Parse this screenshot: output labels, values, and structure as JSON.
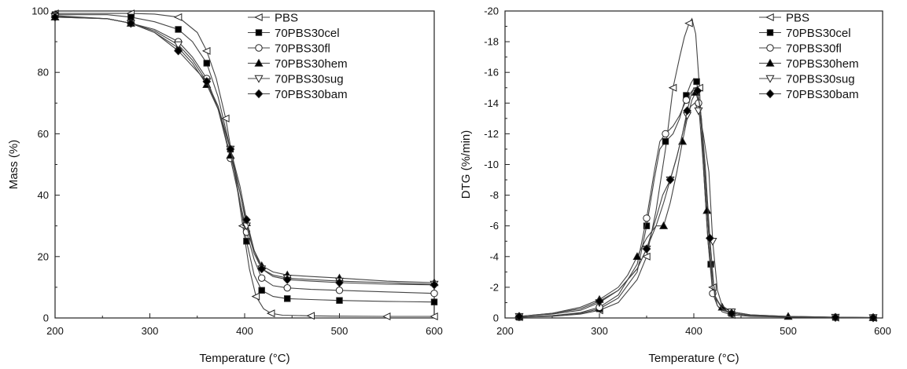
{
  "chart_data": [
    {
      "type": "line",
      "xlabel": "Temperature (°C)",
      "ylabel": "Mass (%)",
      "xlim": [
        200,
        600
      ],
      "ylim": [
        0,
        100
      ],
      "xticks": [
        "200",
        "300",
        "400",
        "500",
        "600"
      ],
      "yticks": [
        "0",
        "20",
        "40",
        "60",
        "80",
        "100"
      ],
      "grid": false,
      "legend_position": "top-right",
      "series": [
        {
          "name": "PBS",
          "marker": "triangle-left-open",
          "x": [
            200,
            255,
            280,
            305,
            330,
            350,
            360,
            370,
            380,
            390,
            398,
            405,
            412,
            420,
            428,
            440,
            470,
            500,
            550,
            600
          ],
          "y": [
            99.2,
            99.2,
            99.2,
            99,
            98,
            93,
            87,
            78,
            65,
            47,
            30,
            16,
            7,
            3,
            1.5,
            0.9,
            0.7,
            0.6,
            0.5,
            0.5
          ]
        },
        {
          "name": "70PBS30cel",
          "marker": "square-filled",
          "x": [
            200,
            255,
            280,
            305,
            330,
            345,
            360,
            372,
            385,
            395,
            402,
            410,
            418,
            430,
            445,
            470,
            500,
            550,
            600
          ],
          "y": [
            98.8,
            98.8,
            98,
            96.5,
            94,
            90,
            83,
            72,
            55,
            38,
            25,
            14,
            9,
            7,
            6.3,
            6,
            5.7,
            5.4,
            5.2
          ]
        },
        {
          "name": "70PBS30fl",
          "marker": "circle-open",
          "x": [
            200,
            255,
            280,
            305,
            330,
            345,
            360,
            372,
            385,
            395,
            402,
            410,
            418,
            430,
            445,
            470,
            500,
            550,
            600
          ],
          "y": [
            98.5,
            97.5,
            96,
            94,
            90,
            85,
            78,
            68,
            52,
            38,
            28,
            19,
            13,
            10.5,
            9.8,
            9.3,
            9,
            8.5,
            8
          ]
        },
        {
          "name": "70PBS30hem",
          "marker": "triangle-up-filled",
          "x": [
            200,
            255,
            280,
            305,
            330,
            345,
            360,
            372,
            385,
            395,
            402,
            410,
            418,
            430,
            445,
            470,
            500,
            550,
            600
          ],
          "y": [
            98,
            97.5,
            96,
            93,
            88,
            83,
            76,
            68,
            53,
            41,
            31,
            22,
            17,
            15,
            14,
            13.5,
            13,
            12,
            11.5
          ]
        },
        {
          "name": "70PBS30sug",
          "marker": "triangle-down-open",
          "x": [
            200,
            255,
            280,
            305,
            330,
            345,
            360,
            372,
            385,
            395,
            402,
            410,
            418,
            430,
            445,
            470,
            500,
            550,
            600
          ],
          "y": [
            98.2,
            97.5,
            96,
            93.5,
            89,
            84,
            77,
            69,
            55,
            41,
            30,
            21,
            16,
            14,
            13,
            12.5,
            12,
            11.5,
            11
          ]
        },
        {
          "name": "70PBS30bam",
          "marker": "diamond-filled",
          "x": [
            200,
            255,
            280,
            305,
            330,
            345,
            360,
            372,
            385,
            395,
            402,
            410,
            418,
            430,
            445,
            470,
            500,
            550,
            600
          ],
          "y": [
            98,
            97.5,
            96,
            93,
            87,
            82,
            77,
            68,
            55,
            43,
            32,
            22,
            16,
            13.5,
            12.5,
            12,
            11.5,
            11,
            10.8
          ]
        }
      ]
    },
    {
      "type": "line",
      "xlabel": "Temperature (°C)",
      "ylabel": "DTG (%/min)",
      "xlim": [
        200,
        600
      ],
      "ylim": [
        0,
        -20
      ],
      "xticks": [
        "200",
        "300",
        "400",
        "500",
        "600"
      ],
      "yticks": [
        "0",
        "-2",
        "-4",
        "-6",
        "-8",
        "-10",
        "-12",
        "-14",
        "-16",
        "-18",
        "-20"
      ],
      "grid": false,
      "legend_position": "top-right",
      "series": [
        {
          "name": "PBS",
          "marker": "triangle-left-open",
          "x": [
            215,
            250,
            280,
            300,
            320,
            340,
            350,
            360,
            370,
            378,
            385,
            390,
            395,
            398,
            402,
            406,
            410,
            415,
            420,
            425,
            430,
            440,
            460,
            500,
            550,
            590
          ],
          "y": [
            -0.05,
            -0.1,
            -0.25,
            -0.5,
            -1,
            -2.5,
            -4,
            -7,
            -11,
            -15,
            -17,
            -18.3,
            -19.2,
            -19.5,
            -18.5,
            -15,
            -10,
            -5,
            -2,
            -0.8,
            -0.4,
            -0.2,
            -0.1,
            -0.05,
            -0.02,
            0
          ]
        },
        {
          "name": "70PBS30cel",
          "marker": "square-filled",
          "x": [
            215,
            250,
            280,
            300,
            320,
            340,
            350,
            358,
            364,
            370,
            378,
            385,
            392,
            397,
            400,
            403,
            408,
            413,
            418,
            423,
            430,
            440,
            460,
            500,
            550,
            590
          ],
          "y": [
            -0.05,
            -0.15,
            -0.3,
            -0.6,
            -1.3,
            -3,
            -6,
            -9,
            -11,
            -11.5,
            -12,
            -13,
            -14.5,
            -15.3,
            -15.6,
            -15.4,
            -13,
            -8.2,
            -3.5,
            -1.3,
            -0.6,
            -0.3,
            -0.15,
            -0.08,
            -0.04,
            -0.02
          ]
        },
        {
          "name": "70PBS30fl",
          "marker": "circle-open",
          "x": [
            215,
            250,
            280,
            300,
            320,
            340,
            350,
            358,
            364,
            370,
            378,
            385,
            392,
            397,
            401,
            405,
            410,
            415,
            420,
            425,
            430,
            440,
            460,
            500,
            550,
            590
          ],
          "y": [
            -0.05,
            -0.15,
            -0.35,
            -0.7,
            -1.5,
            -3.5,
            -6.5,
            -9.5,
            -11.5,
            -12,
            -12.5,
            -13.2,
            -14.2,
            -14.7,
            -15,
            -14,
            -10,
            -5,
            -1.6,
            -0.8,
            -0.5,
            -0.3,
            -0.15,
            -0.08,
            -0.04,
            -0.02
          ]
        },
        {
          "name": "70PBS30hem",
          "marker": "triangle-up-filled",
          "x": [
            215,
            250,
            280,
            300,
            320,
            330,
            340,
            350,
            360,
            368,
            375,
            382,
            388,
            393,
            398,
            402,
            406,
            410,
            414,
            418,
            423,
            430,
            440,
            460,
            500,
            550,
            590
          ],
          "y": [
            -0.1,
            -0.3,
            -0.7,
            -1.2,
            -2,
            -2.8,
            -4,
            -5.2,
            -6,
            -6,
            -7.5,
            -9.5,
            -11.5,
            -13,
            -14.2,
            -14.7,
            -14,
            -11,
            -7,
            -3.5,
            -1.3,
            -0.7,
            -0.4,
            -0.2,
            -0.1,
            -0.05,
            -0.02
          ]
        },
        {
          "name": "70PBS30sug",
          "marker": "triangle-down-open",
          "x": [
            215,
            250,
            280,
            300,
            320,
            340,
            350,
            360,
            367,
            375,
            382,
            388,
            393,
            397,
            401,
            405,
            410,
            416,
            420,
            425,
            430,
            440,
            460,
            500,
            550,
            590
          ],
          "y": [
            -0.1,
            -0.25,
            -0.5,
            -1,
            -1.8,
            -3.2,
            -4.5,
            -6.5,
            -8,
            -9,
            -10.5,
            -12,
            -13.2,
            -13.8,
            -14,
            -13.5,
            -12,
            -9.5,
            -5,
            -1.8,
            -0.8,
            -0.4,
            -0.2,
            -0.1,
            -0.05,
            -0.02
          ]
        },
        {
          "name": "70PBS30bam",
          "marker": "diamond-filled",
          "x": [
            215,
            250,
            280,
            300,
            320,
            340,
            350,
            360,
            368,
            375,
            382,
            388,
            393,
            397,
            400,
            404,
            408,
            412,
            417,
            422,
            430,
            440,
            460,
            500,
            550,
            590
          ],
          "y": [
            -0.1,
            -0.3,
            -0.6,
            -1.1,
            -1.8,
            -3.2,
            -4.5,
            -6,
            -7.5,
            -9,
            -10.5,
            -12,
            -13.5,
            -14.5,
            -15,
            -14.8,
            -13,
            -10,
            -5.2,
            -1.5,
            -0.6,
            -0.3,
            -0.15,
            -0.08,
            -0.04,
            -0.02
          ]
        }
      ]
    }
  ]
}
